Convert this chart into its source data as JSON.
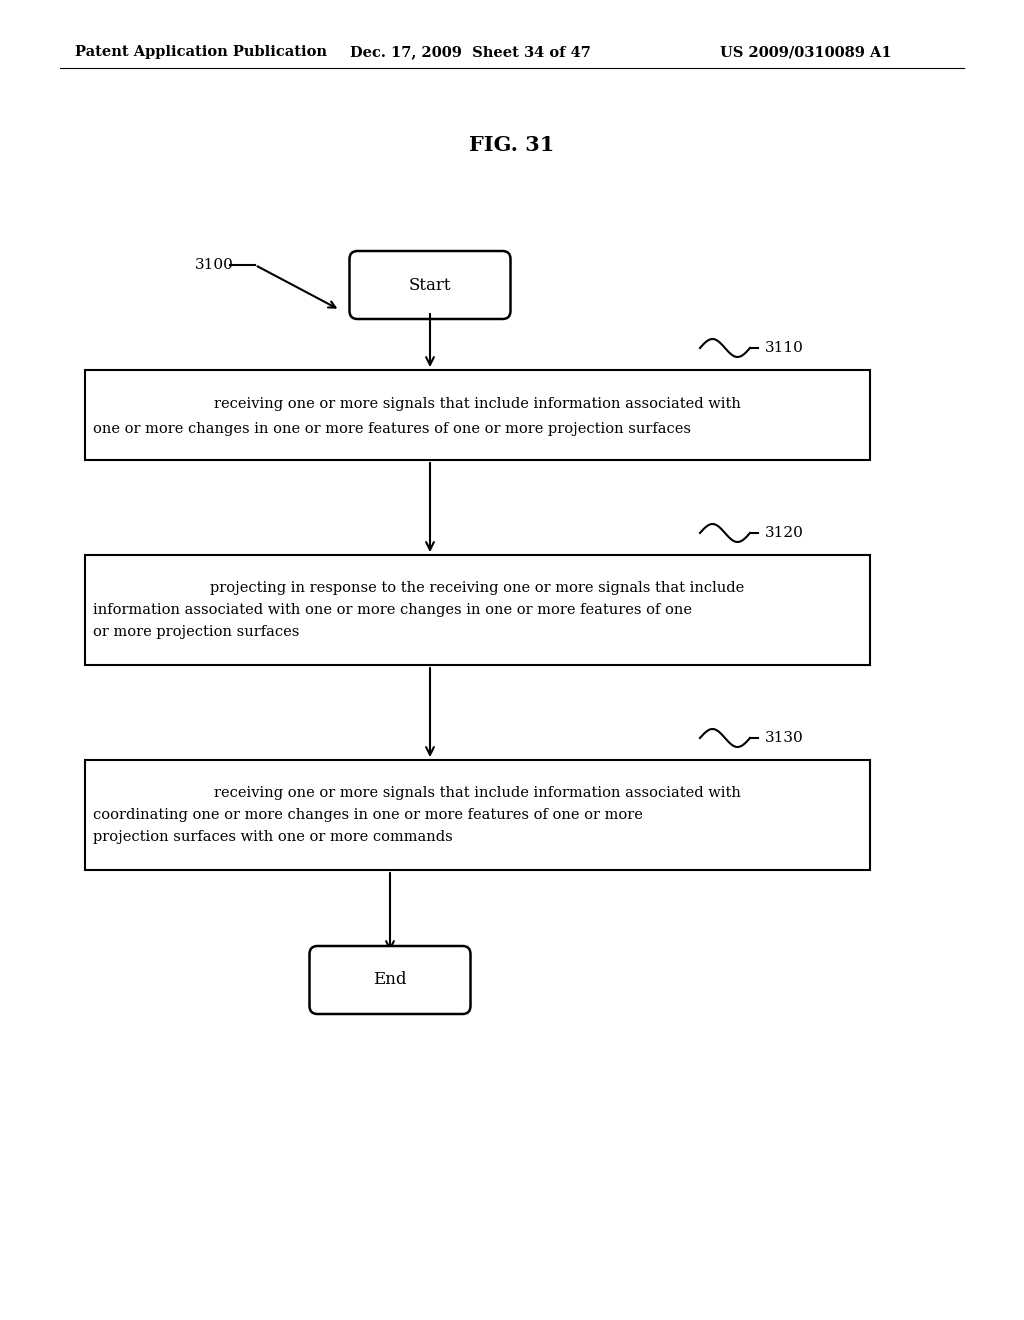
{
  "title": "FIG. 31",
  "header_left": "Patent Application Publication",
  "header_mid": "Dec. 17, 2009  Sheet 34 of 47",
  "header_right": "US 2009/0310089 A1",
  "fig_label": "3100",
  "start_label": "Start",
  "end_label": "End",
  "box1_text_line1": "receiving one or more signals that include information associated with",
  "box1_text_line2": "one or more changes in one or more features of one or more projection surfaces",
  "box2_text_line1": "projecting in response to the receiving one or more signals that include",
  "box2_text_line2": "information associated with one or more changes in one or more features of one",
  "box2_text_line3": "or more projection surfaces",
  "box3_text_line1": "receiving one or more signals that include information associated with",
  "box3_text_line2": "coordinating one or more changes in one or more features of one or more",
  "box3_text_line3": "projection surfaces with one or more commands",
  "label1": "3110",
  "label2": "3120",
  "label3": "3130",
  "background_color": "#ffffff",
  "text_color": "#000000",
  "font_size_header": 10.5,
  "font_size_title": 15,
  "font_size_body": 10.5,
  "font_size_label": 11
}
